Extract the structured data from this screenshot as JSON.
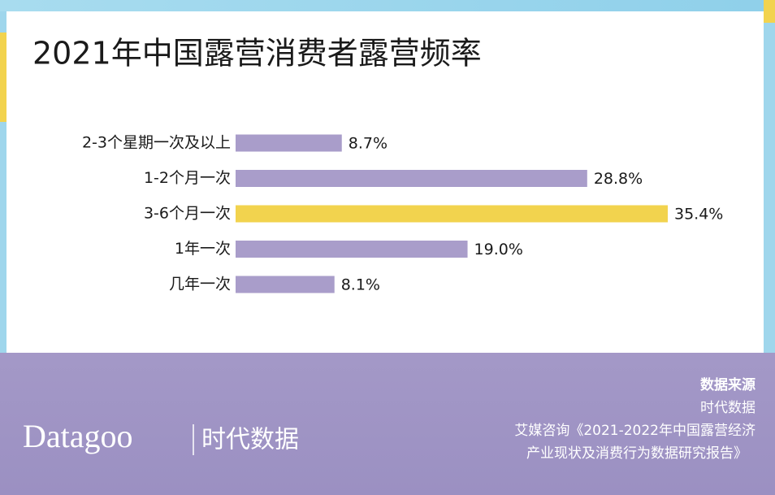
{
  "chart_data": {
    "type": "bar",
    "orientation": "horizontal",
    "title": "2021年中国露营消费者露营频率",
    "categories": [
      "2-3个星期一次及以上",
      "1-2个月一次",
      "3-6个月一次",
      "1年一次",
      "几年一次"
    ],
    "values": [
      8.7,
      28.8,
      35.4,
      19.0,
      8.1
    ],
    "value_labels": [
      "8.7%",
      "28.8%",
      "35.4%",
      "19.0%",
      "8.1%"
    ],
    "colors": [
      "#a99dca",
      "#a99dca",
      "#f2d34e",
      "#a99dca",
      "#a99dca"
    ]
  },
  "source": {
    "title": "数据来源",
    "lines": [
      "时代数据",
      "艾媒咨询《2021-2022年中国露营经济",
      "产业现状及消费行为数据研究报告》"
    ]
  },
  "logo": {
    "brand": "Datagoo",
    "name": "时代数据"
  }
}
